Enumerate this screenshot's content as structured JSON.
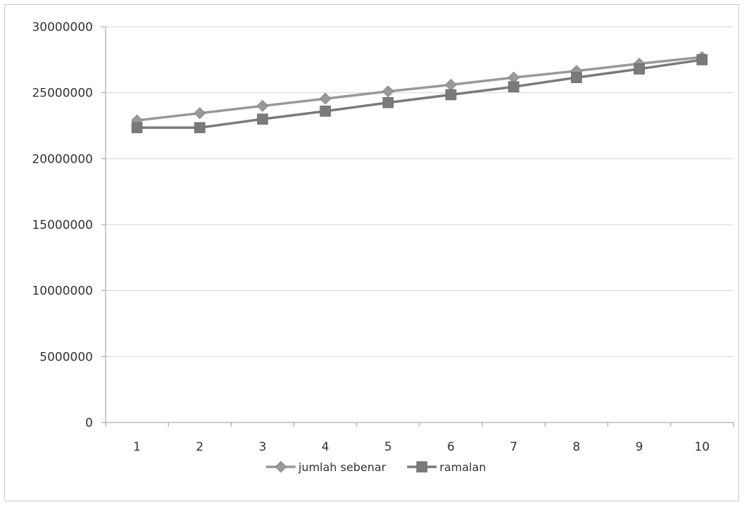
{
  "chart_data": {
    "type": "line",
    "title": "",
    "xlabel": "",
    "ylabel": "",
    "categories": [
      "1",
      "2",
      "3",
      "4",
      "5",
      "6",
      "7",
      "8",
      "9",
      "10"
    ],
    "ylim": [
      0,
      30000000
    ],
    "yticks": [
      "0",
      "5000000",
      "10000000",
      "15000000",
      "20000000",
      "25000000",
      "30000000"
    ],
    "grid": true,
    "legend_position": "bottom",
    "series": [
      {
        "name": "jumlah sebenar",
        "marker": "diamond",
        "color": "#999999",
        "values": [
          22900000,
          23450000,
          24000000,
          24550000,
          25100000,
          25600000,
          26150000,
          26650000,
          27200000,
          27700000
        ]
      },
      {
        "name": "ramalan",
        "marker": "square",
        "color": "#7a7a7a",
        "values": [
          22350000,
          22350000,
          23000000,
          23600000,
          24250000,
          24850000,
          25450000,
          26150000,
          26800000,
          27500000
        ]
      }
    ]
  }
}
